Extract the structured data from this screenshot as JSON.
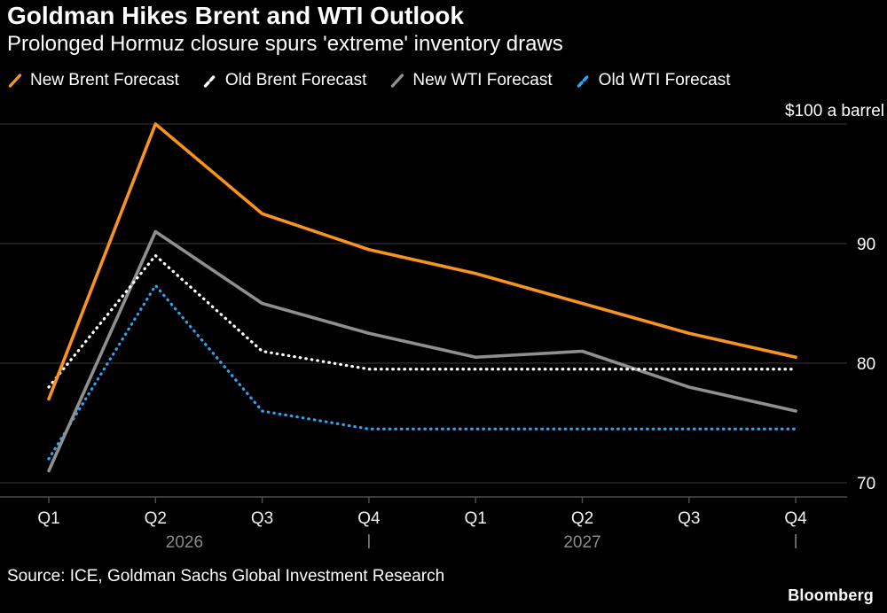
{
  "header": {
    "title": "Goldman Hikes Brent and WTI Outlook",
    "subtitle": "Prolonged Hormuz closure spurs 'extreme' inventory draws"
  },
  "chart_data": {
    "type": "line",
    "x": [
      "Q1",
      "Q2",
      "Q3",
      "Q4",
      "Q1",
      "Q2",
      "Q3",
      "Q4"
    ],
    "x_years": [
      {
        "label": "2026",
        "quarters": [
          0,
          3
        ]
      },
      {
        "label": "2027",
        "quarters": [
          4,
          7
        ]
      }
    ],
    "ylim": [
      68,
      102
    ],
    "yticks": [
      70,
      80,
      90,
      100
    ],
    "ytick_labels": [
      "70",
      "80",
      "90",
      "$100 a barrel"
    ],
    "grid": true,
    "legend_position": "top",
    "series": [
      {
        "name": "New Brent Forecast",
        "color": "#F79320",
        "style": "solid",
        "values": [
          77,
          100,
          92.5,
          89.5,
          87.5,
          85,
          82.5,
          80.5
        ]
      },
      {
        "name": "Old Brent Forecast",
        "color": "#FFFFFF",
        "style": "dotted",
        "values": [
          78,
          89,
          81,
          79.5,
          79.5,
          79.5,
          79.5,
          79.5
        ]
      },
      {
        "name": "New WTI Forecast",
        "color": "#8F8F8F",
        "style": "solid",
        "values": [
          71,
          91,
          85,
          82.5,
          80.5,
          81,
          78,
          76
        ]
      },
      {
        "name": "Old WTI Forecast",
        "color": "#30A2F2",
        "style": "dotted",
        "values": [
          72,
          86.5,
          76,
          74.5,
          74.5,
          74.5,
          74.5,
          74.5
        ]
      }
    ]
  },
  "footer": {
    "source": "Source: ICE, Goldman Sachs Global Investment Research",
    "brand": "Bloomberg"
  }
}
